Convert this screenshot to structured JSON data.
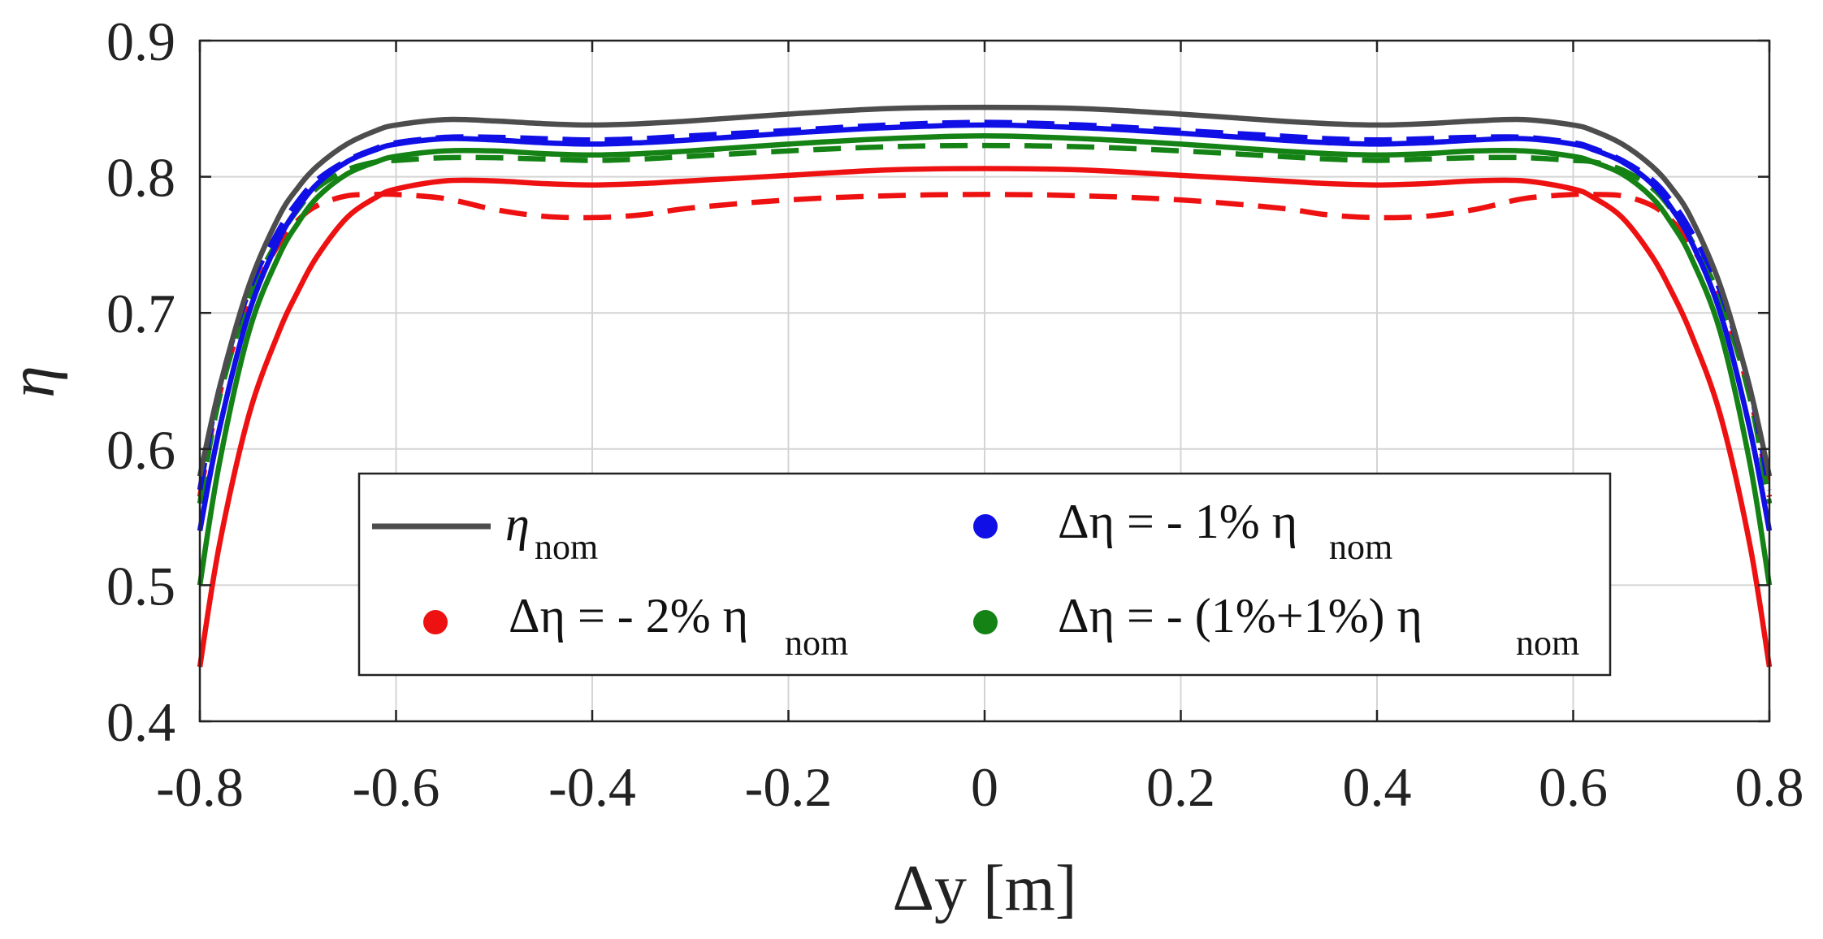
{
  "chart_data": {
    "type": "line",
    "xlabel": "Δy [m]",
    "ylabel": "η",
    "xlim": [
      -0.8,
      0.8
    ],
    "ylim": [
      0.4,
      0.9
    ],
    "grid": true,
    "x_ticks": [
      -0.8,
      -0.6,
      -0.4,
      -0.2,
      0,
      0.2,
      0.4,
      0.6,
      0.8
    ],
    "x_tick_labels": [
      "-0.8",
      "-0.6",
      "-0.4",
      "-0.2",
      "0",
      "0.2",
      "0.4",
      "0.6",
      "0.8"
    ],
    "y_ticks": [
      0.4,
      0.5,
      0.6,
      0.7,
      0.8,
      0.9
    ],
    "y_tick_labels": [
      "0.4",
      "0.5",
      "0.6",
      "0.7",
      "0.8",
      "0.9"
    ],
    "x": [
      -0.8,
      -0.78,
      -0.75,
      -0.72,
      -0.7,
      -0.68,
      -0.65,
      -0.62,
      -0.6,
      -0.55,
      -0.5,
      -0.45,
      -0.4,
      -0.35,
      -0.3,
      -0.2,
      -0.1,
      0,
      0.1,
      0.2,
      0.3,
      0.35,
      0.4,
      0.45,
      0.5,
      0.55,
      0.6,
      0.62,
      0.65,
      0.68,
      0.7,
      0.72,
      0.75,
      0.78,
      0.8
    ],
    "series": [
      {
        "name": "η nom",
        "color": "#4d4d4d",
        "dash": "solid",
        "values": [
          0.58,
          0.645,
          0.72,
          0.77,
          0.792,
          0.808,
          0.824,
          0.834,
          0.838,
          0.842,
          0.841,
          0.839,
          0.838,
          0.839,
          0.841,
          0.846,
          0.85,
          0.851,
          0.85,
          0.846,
          0.841,
          0.839,
          0.838,
          0.839,
          0.841,
          0.842,
          0.838,
          0.834,
          0.824,
          0.808,
          0.792,
          0.77,
          0.72,
          0.645,
          0.58
        ]
      },
      {
        "name": "Δη = - 1% η nom",
        "color": "#1010e6",
        "dash": "solid",
        "values": [
          0.54,
          0.615,
          0.7,
          0.753,
          0.777,
          0.795,
          0.811,
          0.82,
          0.824,
          0.828,
          0.827,
          0.825,
          0.824,
          0.825,
          0.827,
          0.832,
          0.836,
          0.838,
          0.836,
          0.832,
          0.827,
          0.825,
          0.824,
          0.825,
          0.827,
          0.828,
          0.824,
          0.82,
          0.811,
          0.795,
          0.777,
          0.753,
          0.7,
          0.615,
          0.54
        ]
      },
      {
        "name": "Δη = - 1% η nom (dashed)",
        "color": "#1010e6",
        "dash": "dashed",
        "values": [
          0.57,
          0.645,
          0.716,
          0.76,
          0.782,
          0.798,
          0.812,
          0.821,
          0.825,
          0.829,
          0.829,
          0.828,
          0.827,
          0.828,
          0.83,
          0.834,
          0.838,
          0.84,
          0.838,
          0.834,
          0.83,
          0.828,
          0.827,
          0.828,
          0.829,
          0.829,
          0.825,
          0.821,
          0.812,
          0.798,
          0.782,
          0.76,
          0.716,
          0.645,
          0.57
        ]
      },
      {
        "name": "Δη = - (1%+1%) η nom",
        "color": "#148214",
        "dash": "solid",
        "values": [
          0.5,
          0.59,
          0.686,
          0.741,
          0.766,
          0.785,
          0.802,
          0.811,
          0.815,
          0.819,
          0.819,
          0.817,
          0.816,
          0.817,
          0.819,
          0.824,
          0.828,
          0.83,
          0.828,
          0.824,
          0.819,
          0.817,
          0.816,
          0.817,
          0.819,
          0.819,
          0.815,
          0.811,
          0.802,
          0.785,
          0.766,
          0.741,
          0.686,
          0.59,
          0.5
        ]
      },
      {
        "name": "Δη = - (1%+1%) η nom (dashed)",
        "color": "#148214",
        "dash": "dashed",
        "values": [
          0.56,
          0.638,
          0.71,
          0.754,
          0.776,
          0.792,
          0.805,
          0.811,
          0.812,
          0.814,
          0.814,
          0.813,
          0.812,
          0.813,
          0.815,
          0.819,
          0.822,
          0.823,
          0.822,
          0.819,
          0.815,
          0.813,
          0.812,
          0.813,
          0.814,
          0.814,
          0.812,
          0.811,
          0.805,
          0.792,
          0.776,
          0.754,
          0.71,
          0.638,
          0.56
        ]
      },
      {
        "name": "Δη = - 2% η nom",
        "color": "#ee1111",
        "dash": "solid",
        "values": [
          0.44,
          0.53,
          0.625,
          0.685,
          0.716,
          0.742,
          0.77,
          0.785,
          0.791,
          0.797,
          0.797,
          0.795,
          0.794,
          0.795,
          0.797,
          0.801,
          0.805,
          0.806,
          0.805,
          0.801,
          0.797,
          0.795,
          0.794,
          0.795,
          0.797,
          0.797,
          0.791,
          0.785,
          0.77,
          0.742,
          0.716,
          0.685,
          0.625,
          0.53,
          0.44
        ]
      },
      {
        "name": "Δη = - 2% η nom (dashed)",
        "color": "#ee1111",
        "dash": "dashed",
        "values": [
          0.565,
          0.64,
          0.708,
          0.75,
          0.768,
          0.779,
          0.786,
          0.787,
          0.787,
          0.784,
          0.776,
          0.771,
          0.77,
          0.772,
          0.777,
          0.783,
          0.786,
          0.787,
          0.786,
          0.783,
          0.777,
          0.772,
          0.77,
          0.771,
          0.776,
          0.784,
          0.787,
          0.787,
          0.786,
          0.779,
          0.768,
          0.75,
          0.708,
          0.64,
          0.565
        ]
      }
    ],
    "legend": {
      "position": "bottom-center",
      "entries": [
        {
          "symbol": "line",
          "color": "#4d4d4d",
          "label": "η",
          "sub": "nom"
        },
        {
          "symbol": "dot",
          "color": "#1010e6",
          "label": "Δη = - 1% η",
          "sub": "nom"
        },
        {
          "symbol": "dot",
          "color": "#ee1111",
          "label": "Δη = - 2% η",
          "sub": "nom"
        },
        {
          "symbol": "dot",
          "color": "#148214",
          "label": "Δη = - (1%+1%) η",
          "sub": "nom"
        }
      ]
    }
  }
}
